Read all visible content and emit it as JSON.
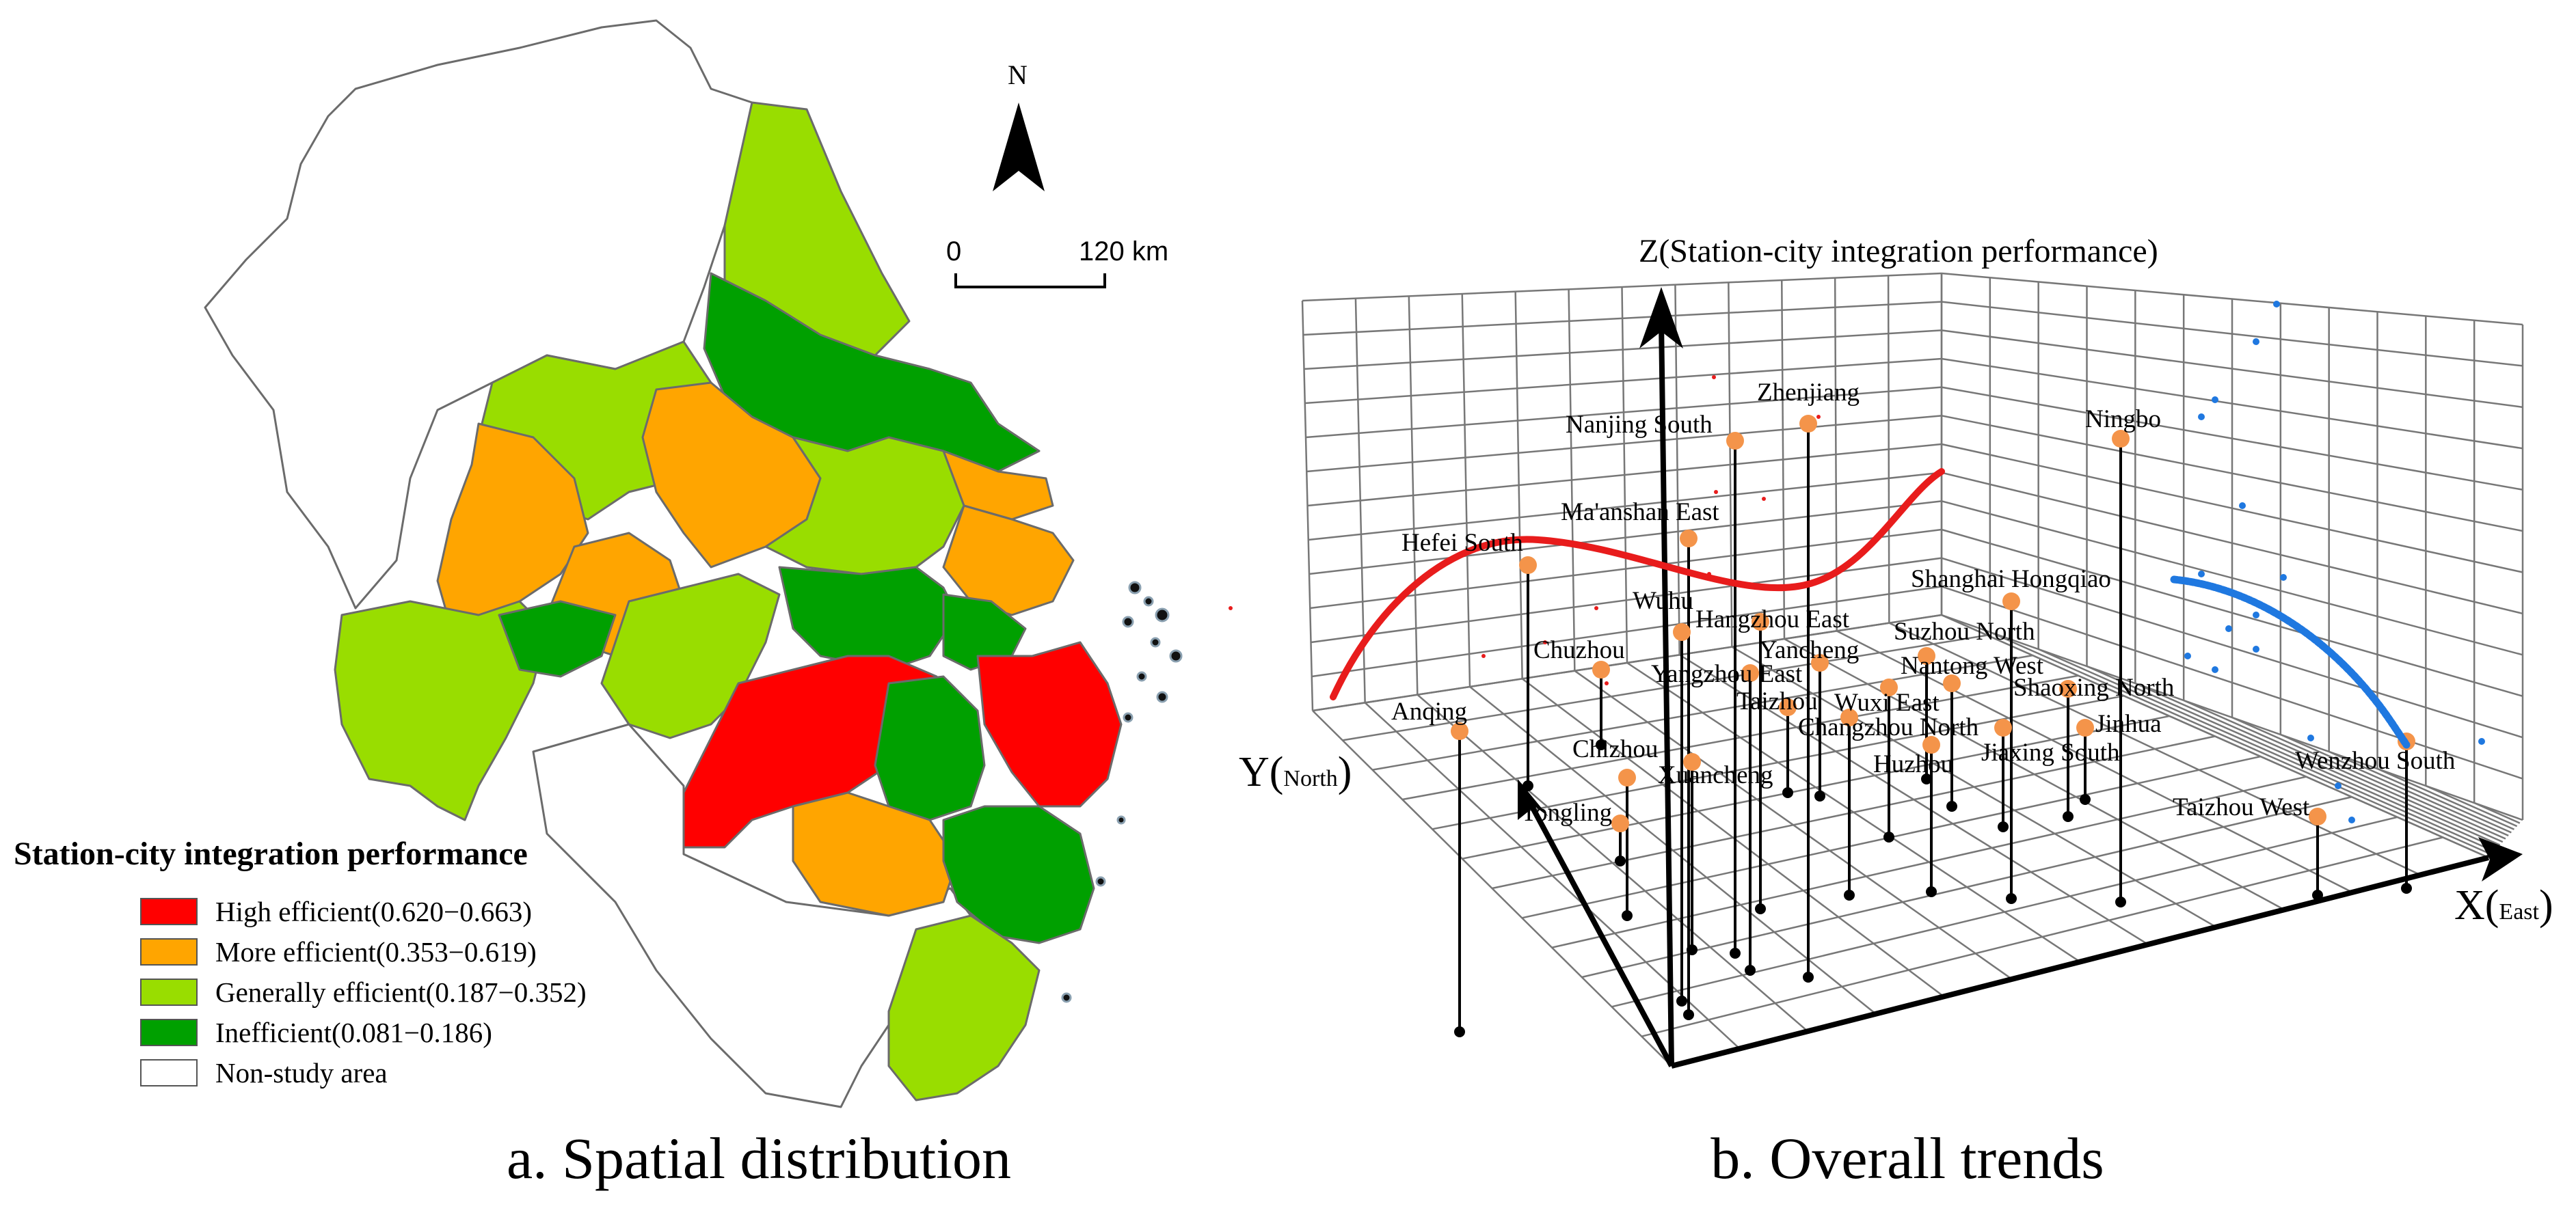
{
  "panel_a": {
    "caption": "a. Spatial distribution",
    "north_label": "N",
    "scale": {
      "start": "0",
      "end": "120 km"
    },
    "legend": {
      "title": "Station-city integration performance",
      "items": [
        {
          "label": "High efficient(0.620−0.663)",
          "color": "#ff0000"
        },
        {
          "label": "More efficient(0.353−0.619)",
          "color": "#ffa500"
        },
        {
          "label": "Generally efficient(0.187−0.352)",
          "color": "#99dd00"
        },
        {
          "label": "Inefficient(0.081−0.186)",
          "color": "#00a000"
        },
        {
          "label": "Non-study area",
          "color": "#ffffff"
        }
      ]
    }
  },
  "panel_b": {
    "caption": "b. Overall trends",
    "z_axis_label": "Z(Station-city integration performance)",
    "x_axis": {
      "main": "X(",
      "sub": "East",
      "close": ")"
    },
    "y_axis": {
      "main": "Y(",
      "sub": "North",
      "close": ")"
    },
    "stations": [
      {
        "name": "Zhenjiang"
      },
      {
        "name": "Ningbo"
      },
      {
        "name": "Nanjing South"
      },
      {
        "name": "Ma'anshan East"
      },
      {
        "name": "Hefei South"
      },
      {
        "name": "Shanghai Hongqiao"
      },
      {
        "name": "Wuhu"
      },
      {
        "name": "Hangzhou East"
      },
      {
        "name": "Suzhou North"
      },
      {
        "name": "Yancheng"
      },
      {
        "name": "Chuzhou"
      },
      {
        "name": "Nantong West"
      },
      {
        "name": "Yangzhou East"
      },
      {
        "name": "Shaoxing North"
      },
      {
        "name": "Taizhou"
      },
      {
        "name": "Wuxi East"
      },
      {
        "name": "Jinhua"
      },
      {
        "name": "Anqing"
      },
      {
        "name": "Changzhou North"
      },
      {
        "name": "Jiaxing South"
      },
      {
        "name": "Chizhou"
      },
      {
        "name": "Huzhou"
      },
      {
        "name": "Xuancheng"
      },
      {
        "name": "Wenzhou South"
      },
      {
        "name": "Tongling"
      },
      {
        "name": "Taizhou West"
      }
    ],
    "colors": {
      "west_trend": "#e81c1c",
      "east_trend": "#1f78e0",
      "station_dot": "#f4944a"
    }
  }
}
